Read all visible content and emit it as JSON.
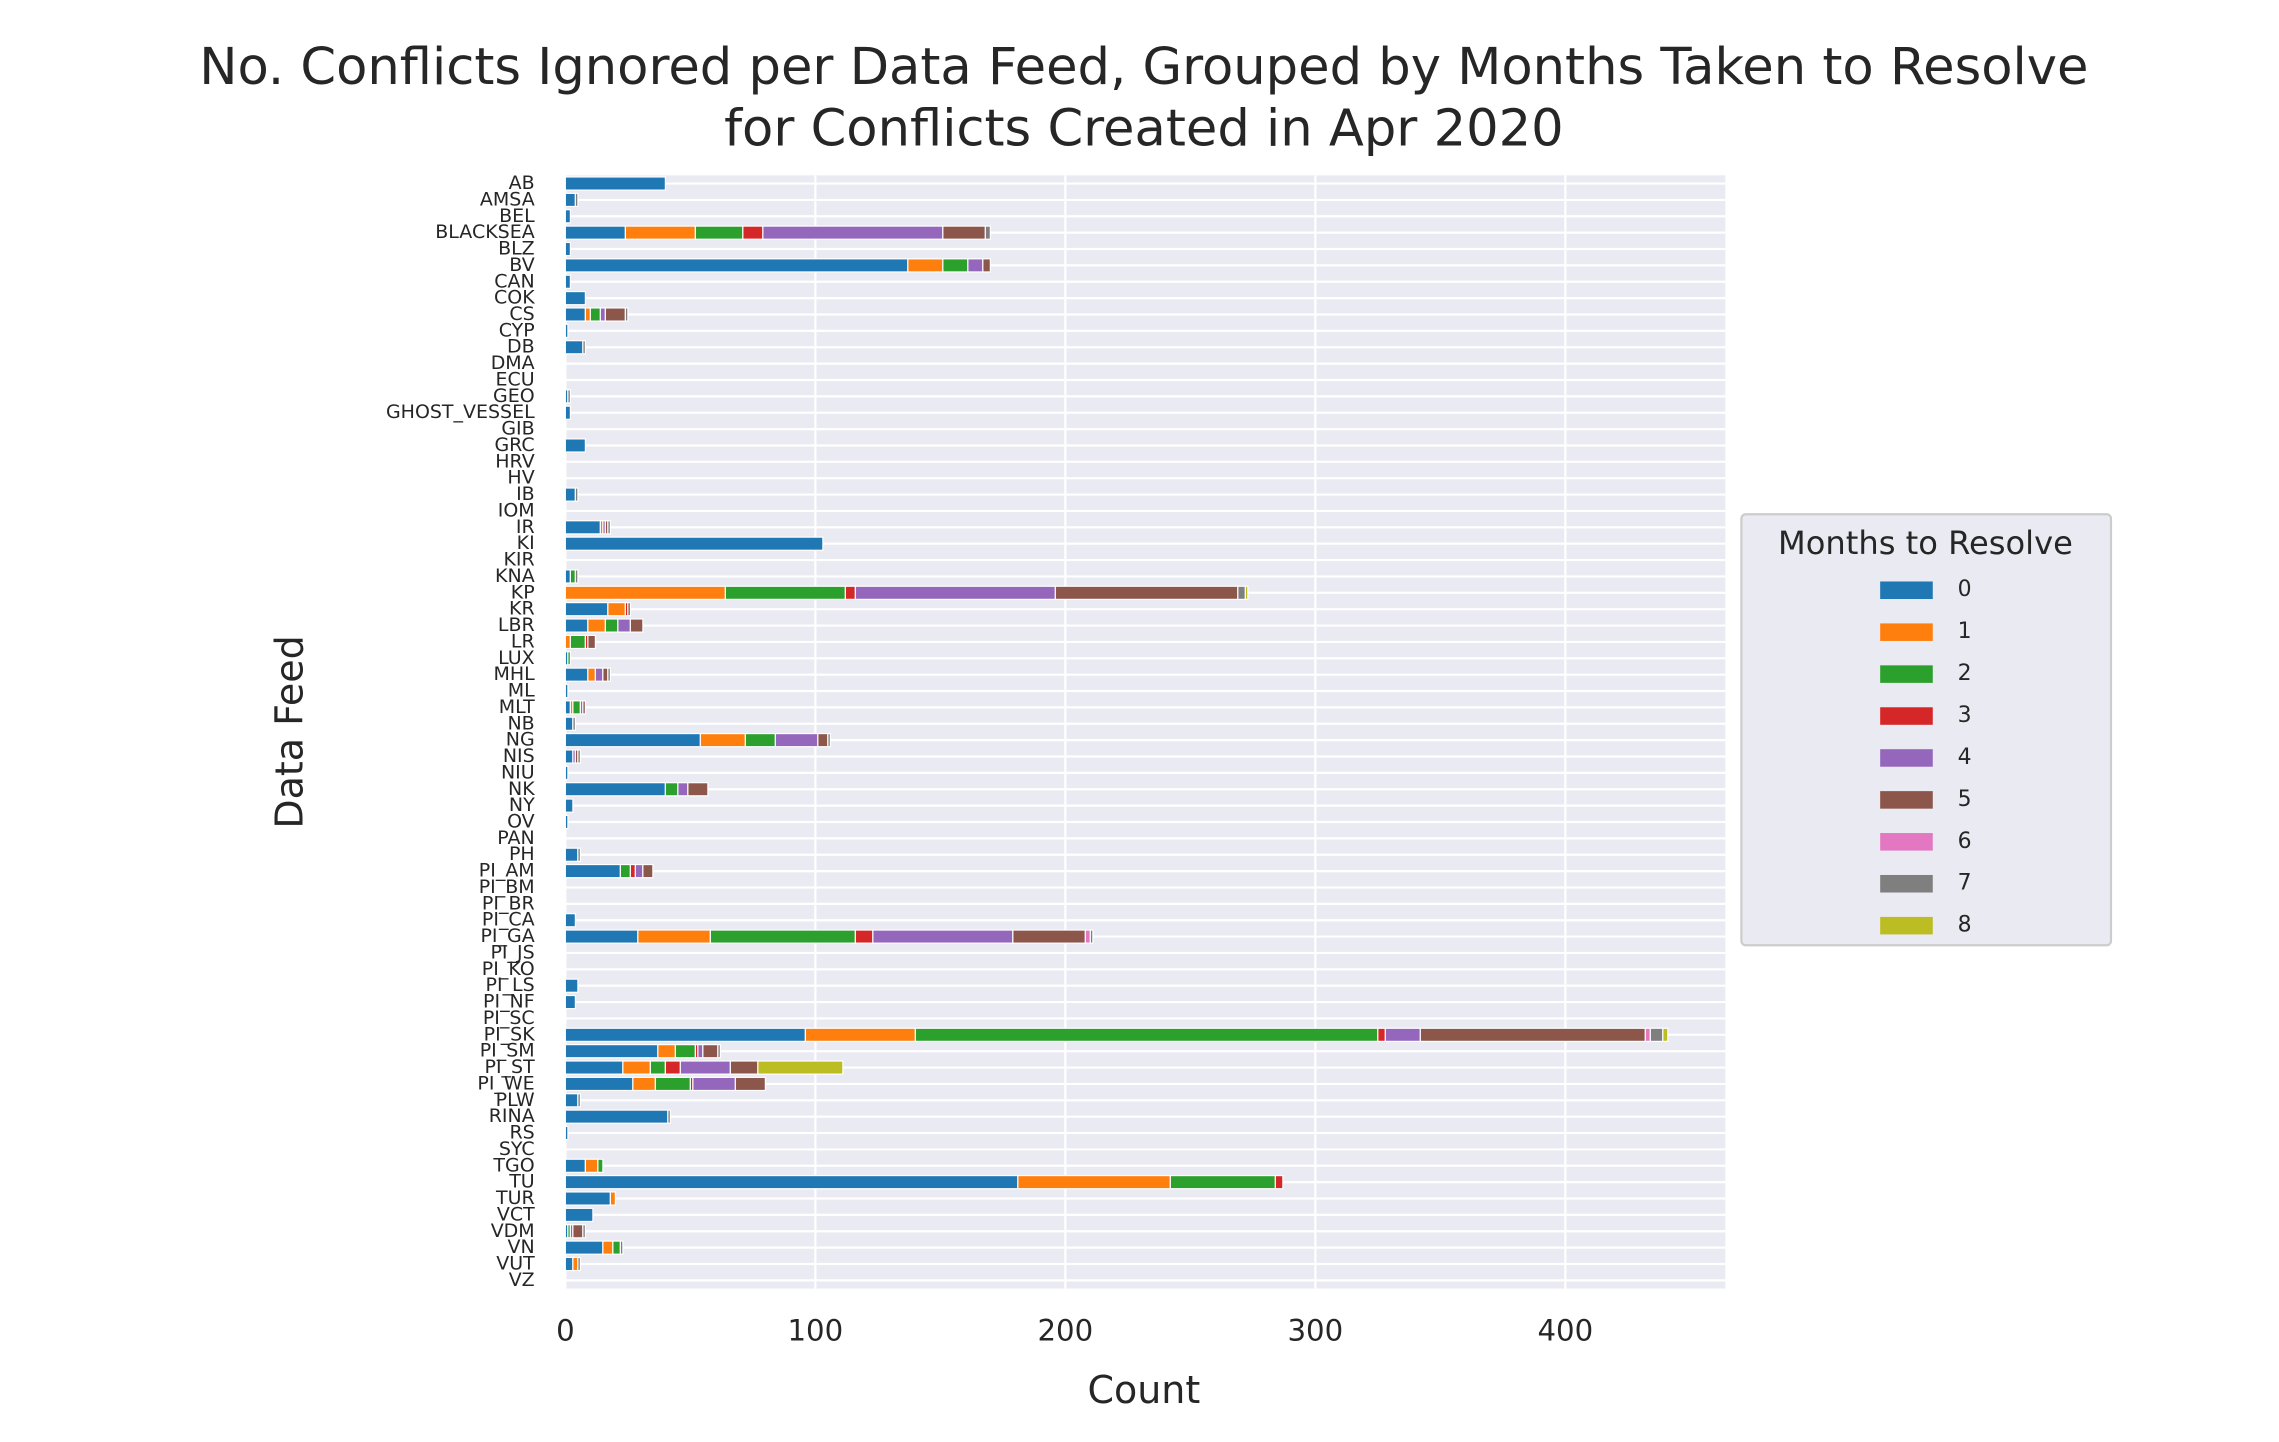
{
  "chart_data": {
    "type": "barh_stacked",
    "title": [
      "No. Conflicts Ignored per Data Feed, Grouped by Months Taken to Resolve",
      "for Conflicts Created in Apr 2020"
    ],
    "xlabel": "Count",
    "ylabel": "Data Feed",
    "legend_title": "Months to Resolve",
    "legend_position": "right",
    "grid": true,
    "xlim": [
      0,
      464
    ],
    "xticks": [
      0,
      100,
      200,
      300,
      400
    ],
    "categories": [
      "AB",
      "AMSA",
      "BEL",
      "BLACKSEA",
      "BLZ",
      "BV",
      "CAN",
      "COK",
      "CS",
      "CYP",
      "DB",
      "DMA",
      "ECU",
      "GEO",
      "GHOST_VESSEL",
      "GIB",
      "GRC",
      "HRV",
      "HV",
      "IB",
      "IOM",
      "IR",
      "KI",
      "KIR",
      "KNA",
      "KP",
      "KR",
      "LBR",
      "LR",
      "LUX",
      "MHL",
      "ML",
      "MLT",
      "NB",
      "NG",
      "NIS",
      "NIU",
      "NK",
      "NY",
      "OV",
      "PAN",
      "PH",
      "PI_AM",
      "PI_BM",
      "PI_BR",
      "PI_CA",
      "PI_GA",
      "PI_JS",
      "PI_KO",
      "PI_LS",
      "PI_NF",
      "PI_SC",
      "PI_SK",
      "PI_SM",
      "PI_ST",
      "PI_WE",
      "PLW",
      "RINA",
      "RS",
      "SYC",
      "TGO",
      "TU",
      "TUR",
      "VCT",
      "VDM",
      "VN",
      "VUT",
      "VZ"
    ],
    "series": [
      {
        "name": "0",
        "color": "#1f77b4",
        "values": [
          40,
          4,
          2,
          24,
          2,
          137,
          2,
          8,
          8,
          1,
          7,
          0,
          0,
          1,
          2,
          0,
          8,
          0,
          0,
          4,
          0,
          14,
          103,
          0,
          2,
          0,
          17,
          9,
          0,
          1,
          9,
          1,
          2,
          3,
          54,
          3,
          1,
          40,
          3,
          1,
          0,
          5,
          22,
          0,
          0,
          4,
          29,
          0,
          0,
          5,
          4,
          0,
          96,
          37,
          23,
          27,
          5,
          41,
          1,
          0,
          8,
          181,
          18,
          11,
          1,
          15,
          3,
          0
        ]
      },
      {
        "name": "1",
        "color": "#ff7f0e",
        "values": [
          0,
          0,
          0,
          28,
          0,
          14,
          0,
          0,
          2,
          0,
          0,
          0,
          0,
          0,
          0,
          0,
          0,
          0,
          0,
          0,
          0,
          1,
          0,
          0,
          0,
          64,
          7,
          7,
          2,
          0,
          3,
          0,
          1,
          0,
          18,
          0,
          0,
          0,
          0,
          0,
          0,
          0,
          0,
          0,
          0,
          0,
          29,
          0,
          0,
          0,
          0,
          0,
          44,
          7,
          11,
          9,
          0,
          0,
          0,
          0,
          5,
          61,
          2,
          0,
          0,
          4,
          2,
          0
        ]
      },
      {
        "name": "2",
        "color": "#2ca02c",
        "values": [
          0,
          0,
          0,
          19,
          0,
          10,
          0,
          0,
          4,
          0,
          0,
          0,
          0,
          0,
          0,
          0,
          0,
          0,
          0,
          0,
          0,
          0,
          0,
          0,
          2,
          48,
          0,
          5,
          6,
          1,
          0,
          0,
          3,
          0,
          12,
          0,
          0,
          5,
          0,
          0,
          0,
          0,
          4,
          0,
          0,
          0,
          58,
          0,
          0,
          0,
          0,
          0,
          185,
          8,
          6,
          14,
          0,
          0,
          0,
          0,
          2,
          42,
          0,
          0,
          1,
          3,
          0,
          0
        ]
      },
      {
        "name": "3",
        "color": "#d62728",
        "values": [
          0,
          0,
          0,
          8,
          0,
          0,
          0,
          0,
          0,
          0,
          0,
          0,
          0,
          0,
          0,
          0,
          0,
          0,
          0,
          0,
          0,
          0,
          0,
          0,
          0,
          4,
          1,
          0,
          1,
          0,
          0,
          0,
          0,
          0,
          0,
          0,
          0,
          0,
          0,
          0,
          0,
          0,
          2,
          0,
          0,
          0,
          7,
          0,
          0,
          0,
          0,
          0,
          3,
          1,
          6,
          1,
          0,
          0,
          0,
          0,
          0,
          3,
          0,
          0,
          0,
          0,
          0,
          0
        ]
      },
      {
        "name": "4",
        "color": "#9467bd",
        "values": [
          0,
          0,
          0,
          72,
          0,
          6,
          0,
          0,
          2,
          0,
          0,
          0,
          0,
          0,
          0,
          0,
          0,
          0,
          0,
          0,
          0,
          1,
          0,
          0,
          0,
          80,
          0,
          5,
          0,
          0,
          3,
          0,
          1,
          0,
          17,
          1,
          0,
          4,
          0,
          0,
          0,
          0,
          3,
          0,
          0,
          0,
          56,
          0,
          0,
          0,
          0,
          0,
          14,
          2,
          20,
          17,
          0,
          0,
          0,
          0,
          0,
          0,
          0,
          0,
          1,
          0,
          0,
          0
        ]
      },
      {
        "name": "5",
        "color": "#8c564b",
        "values": [
          0,
          0,
          0,
          17,
          0,
          3,
          0,
          0,
          8,
          0,
          0,
          0,
          0,
          0,
          0,
          0,
          0,
          0,
          0,
          0,
          0,
          1,
          0,
          0,
          0,
          73,
          1,
          5,
          3,
          0,
          2,
          0,
          1,
          0,
          4,
          1,
          0,
          8,
          0,
          0,
          0,
          0,
          4,
          0,
          0,
          0,
          29,
          0,
          0,
          0,
          0,
          0,
          90,
          6,
          11,
          12,
          0,
          0,
          0,
          0,
          0,
          0,
          0,
          0,
          4,
          0,
          0,
          0
        ]
      },
      {
        "name": "6",
        "color": "#e377c2",
        "values": [
          0,
          0,
          0,
          0,
          0,
          0,
          0,
          0,
          0,
          0,
          0,
          0,
          0,
          0,
          0,
          0,
          0,
          0,
          0,
          0,
          0,
          0,
          0,
          0,
          0,
          0,
          0,
          0,
          0,
          0,
          0,
          0,
          0,
          0,
          0,
          0,
          0,
          0,
          0,
          0,
          0,
          0,
          0,
          0,
          0,
          0,
          2,
          0,
          0,
          0,
          0,
          0,
          2,
          0,
          0,
          0,
          0,
          0,
          0,
          0,
          0,
          0,
          0,
          0,
          0,
          0,
          0,
          0
        ]
      },
      {
        "name": "7",
        "color": "#7f7f7f",
        "values": [
          0,
          1,
          0,
          2,
          0,
          0,
          0,
          0,
          1,
          0,
          1,
          0,
          0,
          1,
          0,
          0,
          0,
          0,
          0,
          1,
          0,
          1,
          0,
          0,
          1,
          3,
          0,
          0,
          0,
          0,
          1,
          0,
          0,
          1,
          1,
          1,
          0,
          0,
          0,
          0,
          0,
          1,
          0,
          0,
          0,
          0,
          1,
          0,
          0,
          0,
          0,
          0,
          5,
          1,
          0,
          0,
          1,
          1,
          0,
          0,
          0,
          0,
          0,
          0,
          1,
          1,
          1,
          0
        ]
      },
      {
        "name": "8",
        "color": "#bcbd22",
        "values": [
          0,
          0,
          0,
          0,
          0,
          0,
          0,
          0,
          0,
          0,
          0,
          0,
          0,
          0,
          0,
          0,
          0,
          0,
          0,
          0,
          0,
          0,
          0,
          0,
          0,
          1,
          0,
          0,
          0,
          0,
          0,
          0,
          0,
          0,
          0,
          0,
          0,
          0,
          0,
          0,
          0,
          0,
          0,
          0,
          0,
          0,
          0,
          0,
          0,
          0,
          0,
          0,
          2,
          0,
          34,
          0,
          0,
          0,
          0,
          0,
          0,
          0,
          0,
          0,
          0,
          0,
          0,
          0
        ]
      }
    ]
  }
}
